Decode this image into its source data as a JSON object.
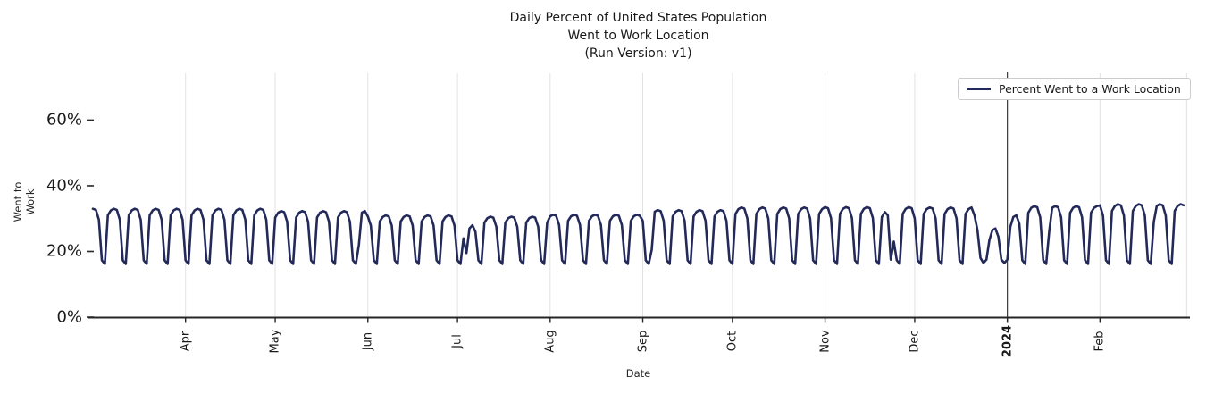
{
  "titles": [
    "Daily Percent of United States Population",
    "Went to Work Location",
    "(Run Version: v1)"
  ],
  "chart_data": {
    "type": "line",
    "title": "Daily Percent of United States Population\nWent to Work Location\n(Run Version: v1)",
    "xlabel": "Date",
    "ylabel": "Went to Work",
    "legend_position": "upper right",
    "grid": "vertical-monthly",
    "grid_color": "#e2e2e2",
    "axis_color": "#262626",
    "x_start_date": "2023-03-01",
    "n_days": 366,
    "ylim": [
      0,
      74
    ],
    "yticks": [
      {
        "value": 0,
        "label": "0%"
      },
      {
        "value": 20,
        "label": "20%"
      },
      {
        "value": 40,
        "label": "40%"
      },
      {
        "value": 60,
        "label": "60%"
      }
    ],
    "xticks": [
      {
        "label": "Apr",
        "day": 31,
        "bold": false
      },
      {
        "label": "May",
        "day": 61,
        "bold": false
      },
      {
        "label": "Jun",
        "day": 92,
        "bold": false
      },
      {
        "label": "Jul",
        "day": 122,
        "bold": false
      },
      {
        "label": "Aug",
        "day": 153,
        "bold": false
      },
      {
        "label": "Sep",
        "day": 184,
        "bold": false
      },
      {
        "label": "Oct",
        "day": 214,
        "bold": false
      },
      {
        "label": "Nov",
        "day": 245,
        "bold": false
      },
      {
        "label": "Dec",
        "day": 275,
        "bold": false
      },
      {
        "label": "2024",
        "day": 306,
        "bold": true
      },
      {
        "label": "Feb",
        "day": 337,
        "bold": false
      }
    ],
    "extra_gridline_day": 366,
    "year_divider": {
      "day": 306,
      "color": "#3a3a3a"
    },
    "series": [
      {
        "name": "Percent Went to a Work Location",
        "color": "#232a59",
        "line_width": 2.6,
        "pattern_note": "daily data: weekday plateaus ~30-34%, weekend troughs ~16-17%, holiday dips",
        "weekday_fractions": {
          "mon": 0.94,
          "tue": 0.985,
          "wed": 1.0,
          "thu": 0.99,
          "fri": 0.9
        },
        "weekend_values": {
          "sat": 17.3,
          "sun": 16.2
        },
        "monthly_weekday_peaks": {
          "2023-03": 33.0,
          "2023-04": 33.0,
          "2023-05": 32.3,
          "2023-06": 31.0,
          "2023-07": 30.6,
          "2023-08": 31.2,
          "2023-09": 32.6,
          "2023-10": 33.4,
          "2023-11": 33.5,
          "2023-12": 33.4,
          "2024-01": 33.8,
          "2024-02": 34.4
        },
        "holiday_overrides": {
          "2023-05-29": 22.0,
          "2023-07-03": 24.0,
          "2023-07-04": 19.5,
          "2023-07-05": 27.0,
          "2023-07-06": 28.0,
          "2023-07-07": 26.0,
          "2023-09-04": 20.5,
          "2023-11-20": 30.5,
          "2023-11-21": 32.0,
          "2023-11-22": 31.0,
          "2023-11-23": 17.5,
          "2023-11-24": 23.0,
          "2023-12-21": 31.0,
          "2023-12-22": 26.5,
          "2023-12-23": 18.0,
          "2023-12-24": 16.5,
          "2023-12-25": 17.5,
          "2023-12-26": 23.5,
          "2023-12-27": 26.5,
          "2023-12-28": 27.0,
          "2023-12-29": 24.5,
          "2023-12-30": 17.5,
          "2023-12-31": 16.5,
          "2024-01-01": 17.5,
          "2024-01-02": 27.5,
          "2024-01-03": 30.5,
          "2024-01-04": 31.0,
          "2024-01-05": 28.5,
          "2024-01-15": 26.0,
          "2024-02-19": 29.0
        }
      }
    ]
  }
}
